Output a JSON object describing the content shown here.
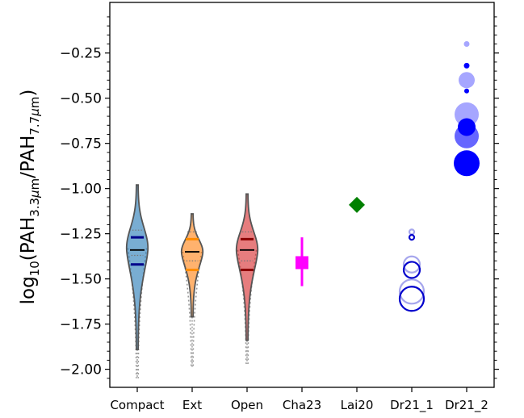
{
  "chart_data": {
    "type": "violin",
    "xlabel": "",
    "ylabel_parts": [
      "log",
      "10",
      "(PAH",
      "3.3",
      "μ",
      "m",
      "/PAH",
      "7.7",
      "μ",
      "m",
      ")"
    ],
    "ylim": [
      -2.1,
      0.03
    ],
    "yticks": [
      -0.25,
      -0.5,
      -0.75,
      -1.0,
      -1.25,
      -1.5,
      -1.75,
      -2.0
    ],
    "ytick_labels": [
      "−0.25",
      "−0.50",
      "−0.75",
      "−1.00",
      "−1.25",
      "−1.50",
      "−1.75",
      "−2.00"
    ],
    "categories": [
      "Compact",
      "Ext",
      "Open",
      "Cha23",
      "Lai20",
      "Dr21_1",
      "Dr21_2"
    ],
    "violins": [
      {
        "category": "Compact",
        "color": "#1f77b4",
        "dark": "#00008b",
        "min": -1.89,
        "max": -0.98,
        "median": -1.34,
        "q1": -1.42,
        "q3": -1.27,
        "mode": -1.33,
        "width": 0.36
      },
      {
        "category": "Ext",
        "color": "#ff7f0e",
        "dark": "#ff8c00",
        "min": -1.71,
        "max": -1.14,
        "median": -1.35,
        "q1": -1.45,
        "q3": -1.28,
        "mode": -1.35,
        "width": 0.36
      },
      {
        "category": "Open",
        "color": "#d62728",
        "dark": "#8b0000",
        "min": -1.84,
        "max": -1.03,
        "median": -1.34,
        "q1": -1.45,
        "q3": -1.28,
        "mode": -1.34,
        "width": 0.36
      }
    ],
    "ghost_tails": [
      {
        "category": "Compact",
        "bottom": -2.05
      },
      {
        "category": "Ext",
        "bottom": -1.99
      },
      {
        "category": "Open",
        "bottom": -1.97
      }
    ],
    "cha23": {
      "category": "Cha23",
      "y": -1.41,
      "err_low": -1.54,
      "err_high": -1.27,
      "color": "#ff00ff"
    },
    "lai20": {
      "category": "Lai20",
      "y": -1.09,
      "color": "#008000"
    },
    "dr21_1": {
      "category": "Dr21_1",
      "color": "#0000cc",
      "circles": [
        {
          "y": -1.24,
          "r": 3,
          "alpha": 0.35
        },
        {
          "y": -1.27,
          "r": 3,
          "alpha": 1.0
        },
        {
          "y": -1.42,
          "r": 10,
          "alpha": 0.35
        },
        {
          "y": -1.45,
          "r": 10,
          "alpha": 1.0
        },
        {
          "y": -1.57,
          "r": 15,
          "alpha": 0.35
        },
        {
          "y": -1.61,
          "r": 15,
          "alpha": 1.0
        }
      ]
    },
    "dr21_2": {
      "category": "Dr21_2",
      "color": "#0000ff",
      "circles": [
        {
          "y": -0.2,
          "r": 3.5,
          "alpha": 0.35
        },
        {
          "y": -0.32,
          "r": 3.5,
          "alpha": 1.0
        },
        {
          "y": -0.4,
          "r": 10,
          "alpha": 0.35
        },
        {
          "y": -0.46,
          "r": 3,
          "alpha": 1.0
        },
        {
          "y": -0.59,
          "r": 15,
          "alpha": 0.35
        },
        {
          "y": -0.66,
          "r": 11,
          "alpha": 1.0
        },
        {
          "y": -0.71,
          "r": 15,
          "alpha": 0.6
        },
        {
          "y": -0.86,
          "r": 16,
          "alpha": 1.0
        }
      ]
    }
  }
}
